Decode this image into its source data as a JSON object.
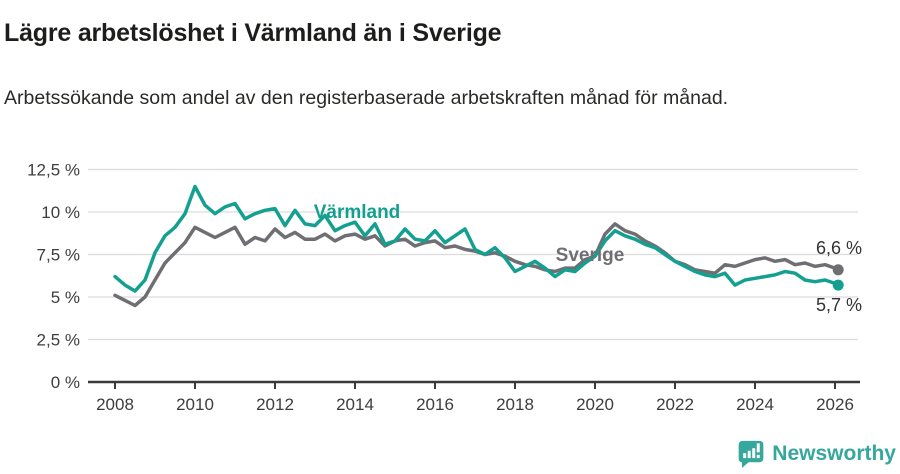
{
  "header": {
    "title": "Lägre arbetslöshet i Värmland än i Sverige",
    "subtitle": "Arbetssökande som andel av den registerbaserade arbetskraften månad för månad."
  },
  "chart_data": {
    "type": "line",
    "unit": "%",
    "grid": true,
    "xlim": [
      2007.8,
      2026.6
    ],
    "ylim": [
      0,
      13.2
    ],
    "x_ticks": [
      2008,
      2010,
      2012,
      2014,
      2016,
      2018,
      2020,
      2022,
      2024,
      2026
    ],
    "y_ticks": [
      {
        "value": 0,
        "label": "0 %"
      },
      {
        "value": 2.5,
        "label": "2,5 %"
      },
      {
        "value": 5,
        "label": "5 %"
      },
      {
        "value": 7.5,
        "label": "7,5 %"
      },
      {
        "value": 10,
        "label": "10 %"
      },
      {
        "value": 12.5,
        "label": "12,5 %"
      }
    ],
    "x": [
      2008,
      2008.25,
      2008.5,
      2008.75,
      2009,
      2009.25,
      2009.5,
      2009.75,
      2010,
      2010.25,
      2010.5,
      2010.75,
      2011,
      2011.25,
      2011.5,
      2011.75,
      2012,
      2012.25,
      2012.5,
      2012.75,
      2013,
      2013.25,
      2013.5,
      2013.75,
      2014,
      2014.25,
      2014.5,
      2014.75,
      2015,
      2015.25,
      2015.5,
      2015.75,
      2016,
      2016.25,
      2016.5,
      2016.75,
      2017,
      2017.25,
      2017.5,
      2017.75,
      2018,
      2018.25,
      2018.5,
      2018.75,
      2019,
      2019.25,
      2019.5,
      2019.75,
      2020,
      2020.25,
      2020.5,
      2020.75,
      2021,
      2021.25,
      2021.5,
      2021.75,
      2022,
      2022.25,
      2022.5,
      2022.75,
      2023,
      2023.25,
      2023.5,
      2023.75,
      2024,
      2024.25,
      2024.5,
      2024.75,
      2025,
      2025.25,
      2025.5,
      2025.75,
      2026,
      2026.08
    ],
    "series": [
      {
        "name": "Sverige",
        "color": "#6f6f73",
        "end_label": "6,6 %",
        "values": [
          5.1,
          4.8,
          4.5,
          5.0,
          6.0,
          7.0,
          7.6,
          8.2,
          9.1,
          8.8,
          8.5,
          8.8,
          9.1,
          8.1,
          8.5,
          8.3,
          9.0,
          8.5,
          8.8,
          8.4,
          8.4,
          8.7,
          8.3,
          8.6,
          8.7,
          8.4,
          8.6,
          8.0,
          8.3,
          8.4,
          8.0,
          8.2,
          8.3,
          7.9,
          8.0,
          7.8,
          7.7,
          7.5,
          7.6,
          7.4,
          7.1,
          6.9,
          6.8,
          6.6,
          6.5,
          6.7,
          6.7,
          7.2,
          7.4,
          8.7,
          9.3,
          8.9,
          8.7,
          8.3,
          8.0,
          7.6,
          7.1,
          6.9,
          6.6,
          6.5,
          6.4,
          6.9,
          6.8,
          7.0,
          7.2,
          7.3,
          7.1,
          7.2,
          6.9,
          7.0,
          6.8,
          6.9,
          6.7,
          6.6
        ]
      },
      {
        "name": "Värmland",
        "color": "#14a090",
        "end_label": "5,7 %",
        "values": [
          6.2,
          5.7,
          5.35,
          6.0,
          7.6,
          8.6,
          9.1,
          9.9,
          11.5,
          10.4,
          9.9,
          10.3,
          10.5,
          9.6,
          9.9,
          10.1,
          10.2,
          9.2,
          10.1,
          9.3,
          9.2,
          9.8,
          8.9,
          9.2,
          9.4,
          8.6,
          9.3,
          8.1,
          8.3,
          9.0,
          8.4,
          8.3,
          8.9,
          8.2,
          8.6,
          9.0,
          7.8,
          7.5,
          7.9,
          7.3,
          6.5,
          6.8,
          7.1,
          6.7,
          6.2,
          6.6,
          6.5,
          7.0,
          7.4,
          8.3,
          8.9,
          8.6,
          8.4,
          8.1,
          7.9,
          7.5,
          7.1,
          6.8,
          6.5,
          6.3,
          6.2,
          6.4,
          5.7,
          6.0,
          6.1,
          6.2,
          6.3,
          6.5,
          6.4,
          6.0,
          5.9,
          6.0,
          5.8,
          5.7
        ]
      }
    ],
    "annotations": {
      "varmland_label": "Värmland",
      "sverige_label": "Sverige"
    }
  },
  "footer": {
    "brand": "Newsworthy",
    "logo_icon": "bar-chart-speech-bubble"
  },
  "colors": {
    "varmland": "#14a090",
    "sverige": "#6f6f73",
    "grid": "#dcdcdc",
    "axis": "#3a3a3a",
    "brand": "#35a79c"
  }
}
